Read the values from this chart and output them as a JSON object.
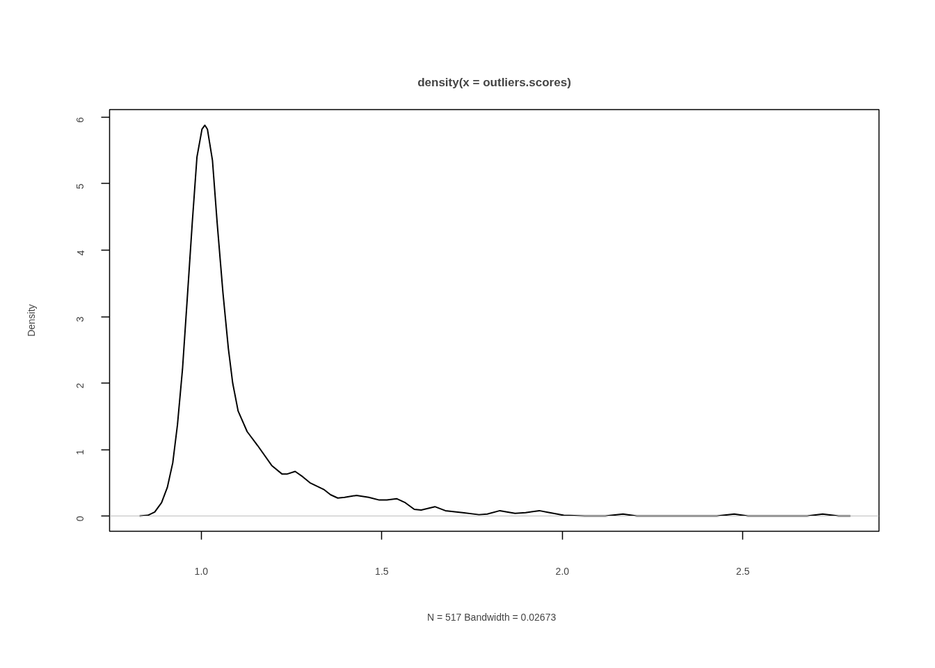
{
  "chart_data": {
    "type": "line",
    "title": "density(x = outliers.scores)",
    "xlabel": "N = 517   Bandwidth = 0.02673",
    "ylabel": "Density",
    "xlim": [
      0.746,
      2.877
    ],
    "ylim": [
      -0.23,
      6.115
    ],
    "xticks": [
      {
        "value": 1.0,
        "label": "1.0"
      },
      1.5,
      {
        "value": 2.0,
        "label": "2.0"
      },
      2.5
    ],
    "yticks": [
      0,
      1,
      2,
      3,
      4,
      5,
      6
    ],
    "grid": false,
    "marker": "none",
    "line_style": "solid",
    "ref_lines": [
      {
        "axis": "y",
        "value": 0,
        "color": "#bebebe"
      }
    ],
    "series": [
      {
        "color": "#000000",
        "x": [
          0.829,
          0.852,
          0.871,
          0.89,
          0.906,
          0.921,
          0.934,
          0.948,
          0.961,
          0.975,
          0.988,
          1.002,
          1.01,
          1.017,
          1.031,
          1.044,
          1.06,
          1.075,
          1.087,
          1.102,
          1.127,
          1.156,
          1.195,
          1.224,
          1.237,
          1.26,
          1.281,
          1.301,
          1.339,
          1.358,
          1.378,
          1.397,
          1.43,
          1.464,
          1.493,
          1.514,
          1.541,
          1.565,
          1.59,
          1.609,
          1.647,
          1.676,
          1.724,
          1.769,
          1.792,
          1.827,
          1.869,
          1.898,
          1.936,
          1.965,
          2.004,
          2.062,
          2.119,
          2.168,
          2.206,
          2.37,
          2.428,
          2.476,
          2.514,
          2.678,
          2.721,
          2.765,
          2.798
        ],
        "values": [
          0,
          0.01,
          0.06,
          0.2,
          0.43,
          0.8,
          1.37,
          2.21,
          3.26,
          4.41,
          5.4,
          5.82,
          5.88,
          5.82,
          5.35,
          4.41,
          3.36,
          2.52,
          2.0,
          1.58,
          1.27,
          1.06,
          0.76,
          0.63,
          0.63,
          0.67,
          0.59,
          0.5,
          0.4,
          0.32,
          0.27,
          0.28,
          0.31,
          0.28,
          0.24,
          0.24,
          0.26,
          0.2,
          0.1,
          0.09,
          0.14,
          0.08,
          0.05,
          0.02,
          0.03,
          0.08,
          0.04,
          0.05,
          0.08,
          0.05,
          0.01,
          0,
          0,
          0.03,
          0,
          0,
          0,
          0.03,
          0,
          0,
          0.03,
          0,
          0
        ]
      }
    ]
  }
}
